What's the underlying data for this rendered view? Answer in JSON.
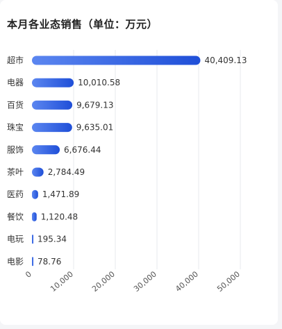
{
  "chart_data": {
    "type": "bar",
    "orientation": "horizontal",
    "title": "本月各业态销售（单位：万元）",
    "categories": [
      "超市",
      "电器",
      "百货",
      "珠宝",
      "服饰",
      "茶叶",
      "医药",
      "餐饮",
      "电玩",
      "电影"
    ],
    "values": [
      40409.13,
      10010.58,
      9679.13,
      9635.01,
      6676.44,
      2784.49,
      1471.89,
      1120.48,
      195.34,
      78.76
    ],
    "value_labels": [
      "40,409.13",
      "10,010.58",
      "9,679.13",
      "9,635.01",
      "6,676.44",
      "2,784.49",
      "1,471.89",
      "1,120.48",
      "195.34",
      "78.76"
    ],
    "xlim": [
      0,
      50000
    ],
    "xticks": [
      0,
      10000,
      20000,
      30000,
      40000,
      50000
    ],
    "xtick_labels": [
      "0",
      "10,000",
      "20,000",
      "30,000",
      "40,000",
      "50,000"
    ],
    "grid": true,
    "bar_color_start": "#5b86f0",
    "bar_color_end": "#1f4fd8"
  }
}
